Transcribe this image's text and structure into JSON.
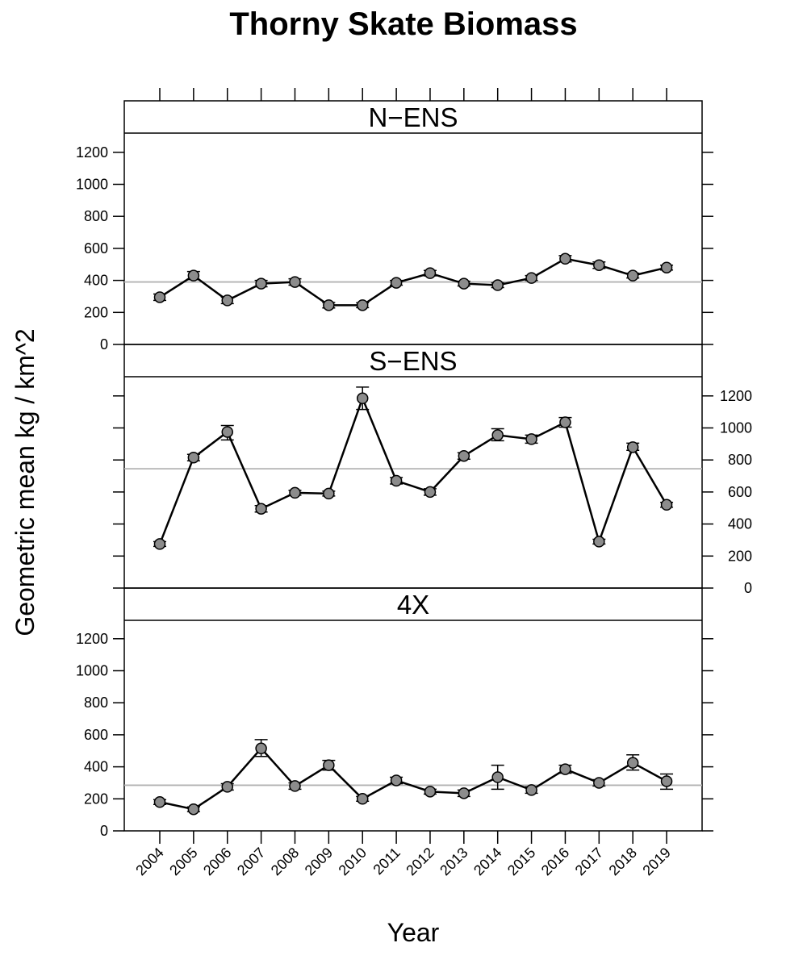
{
  "chart_data": {
    "type": "line",
    "title": "Thorny Skate Biomass",
    "xlabel": "Year",
    "ylabel": "Geometric mean kg / km^2",
    "x": [
      2004,
      2005,
      2006,
      2007,
      2008,
      2009,
      2010,
      2011,
      2012,
      2013,
      2014,
      2015,
      2016,
      2017,
      2018,
      2019
    ],
    "x_tick_labels": [
      "2004",
      "2005",
      "2006",
      "2007",
      "2008",
      "2009",
      "2010",
      "2011",
      "2012",
      "2013",
      "2014",
      "2015",
      "2016",
      "2017",
      "2018",
      "2019"
    ],
    "ylim": [
      0,
      1300
    ],
    "y_ticks": [
      0,
      200,
      400,
      600,
      800,
      1000,
      1200
    ],
    "y_tick_labels": [
      "0",
      "200",
      "400",
      "600",
      "800",
      "1000",
      "1200"
    ],
    "grid": false,
    "colors": {
      "line": "#000000",
      "point_fill": "#8c8c8c",
      "mean_line": "#b3b3b3",
      "frame": "#000000"
    },
    "panels": [
      {
        "name": "N−ENS",
        "values": [
          295,
          430,
          275,
          380,
          390,
          245,
          245,
          385,
          445,
          380,
          370,
          415,
          535,
          495,
          430,
          480
        ],
        "error_low": [
          275,
          405,
          255,
          360,
          370,
          228,
          230,
          370,
          428,
          365,
          355,
          400,
          515,
          475,
          415,
          465
        ],
        "error_high": [
          315,
          455,
          295,
          400,
          410,
          262,
          260,
          400,
          462,
          395,
          385,
          430,
          555,
          515,
          445,
          495
        ],
        "mean": 390
      },
      {
        "name": "S−ENS",
        "values": [
          275,
          815,
          975,
          495,
          595,
          590,
          1185,
          670,
          600,
          825,
          955,
          930,
          1035,
          290,
          880,
          520
        ],
        "error_low": [
          260,
          795,
          925,
          475,
          580,
          575,
          1115,
          650,
          580,
          805,
          920,
          905,
          1005,
          275,
          860,
          505
        ],
        "error_high": [
          290,
          835,
          1015,
          515,
          610,
          605,
          1255,
          690,
          620,
          845,
          995,
          955,
          1065,
          305,
          905,
          535
        ],
        "mean": 745
      },
      {
        "name": "4X",
        "values": [
          180,
          135,
          275,
          515,
          280,
          410,
          200,
          315,
          245,
          235,
          335,
          255,
          385,
          300,
          425,
          310
        ],
        "error_low": [
          165,
          120,
          255,
          465,
          260,
          380,
          185,
          295,
          230,
          215,
          260,
          235,
          360,
          280,
          380,
          260
        ],
        "error_high": [
          195,
          150,
          295,
          570,
          300,
          440,
          215,
          335,
          260,
          255,
          410,
          275,
          410,
          320,
          475,
          355
        ],
        "mean": 285
      }
    ]
  }
}
